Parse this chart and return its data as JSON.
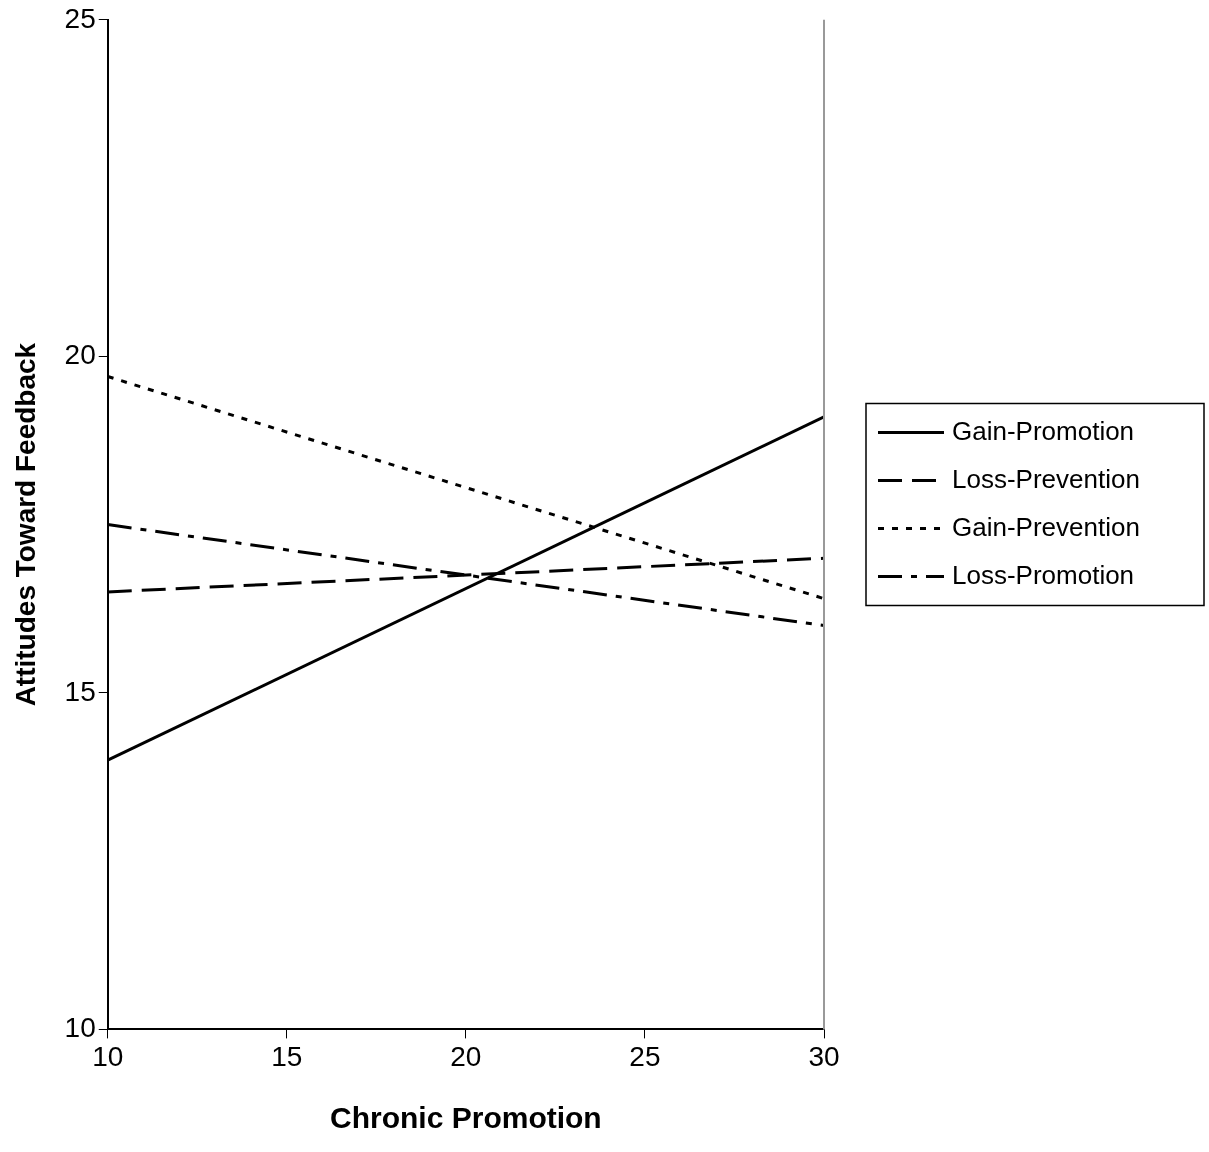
{
  "chart_data": {
    "type": "line",
    "xlabel": "Chronic Promotion",
    "ylabel": "Attitudes Toward Feedback",
    "x": [
      10,
      30
    ],
    "series": [
      {
        "name": "Gain-Promotion",
        "color": "#000000",
        "values": [
          14.0,
          19.1
        ],
        "line_style": "solid"
      },
      {
        "name": "Loss-Prevention",
        "color": "#000000",
        "values": [
          16.5,
          17.0
        ],
        "line_style": "dashed"
      },
      {
        "name": "Gain-Prevention",
        "color": "#000000",
        "values": [
          19.7,
          16.4
        ],
        "line_style": "dotted"
      },
      {
        "name": "Loss-Promotion",
        "color": "#000000",
        "values": [
          17.5,
          16.0
        ],
        "line_style": "dashdot"
      }
    ],
    "xlim": [
      10,
      30
    ],
    "xticks": [
      10,
      15,
      20,
      25,
      30
    ],
    "ylim": [
      10,
      25
    ],
    "yticks": [
      10,
      15,
      20,
      25
    ],
    "grid": false,
    "legend": "right",
    "marker": "none"
  }
}
